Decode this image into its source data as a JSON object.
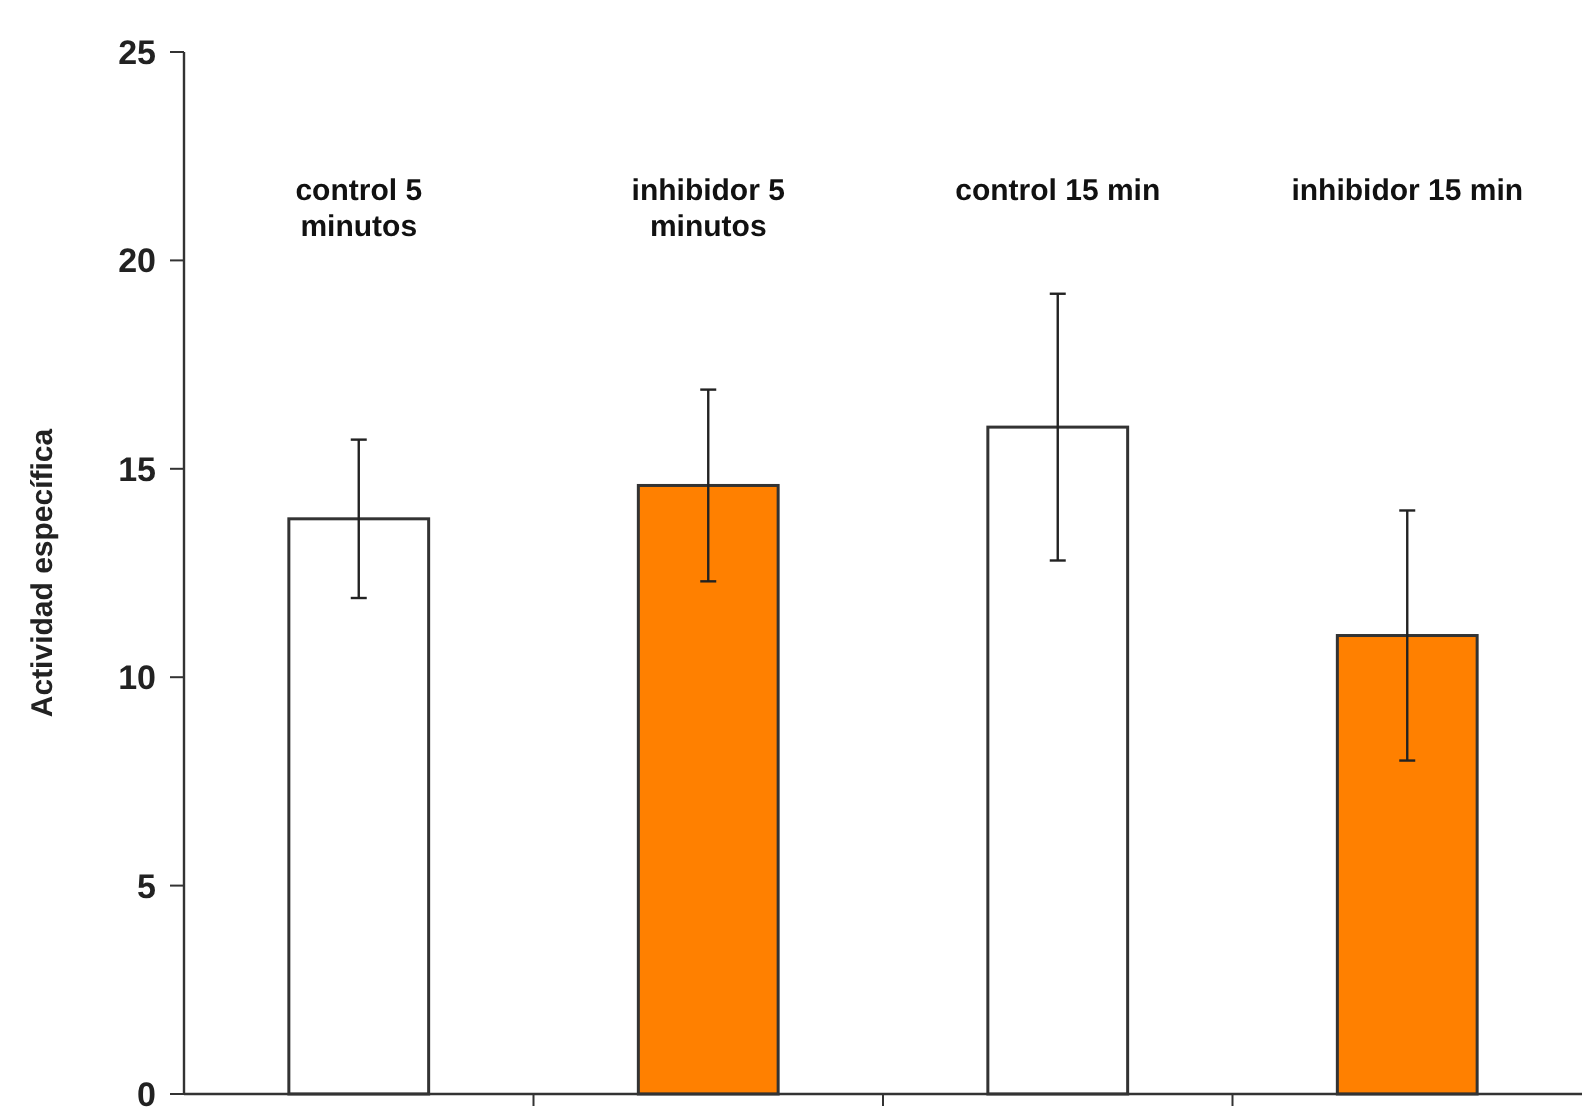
{
  "chart_data": {
    "type": "bar",
    "ylabel": "Actividad específica",
    "categories": [
      "control 5 minutos",
      "inhibidor 5 minutos",
      "control 15 min",
      "inhibidor 15 min"
    ],
    "values": [
      13.8,
      14.6,
      16.0,
      11.0
    ],
    "errors": [
      1.9,
      2.3,
      3.2,
      3.0
    ],
    "colors": [
      "#ffffff",
      "#ff8000",
      "#ffffff",
      "#ff8000"
    ],
    "ylim": [
      0,
      25
    ],
    "yticks": [
      0,
      5,
      10,
      15,
      20,
      25
    ],
    "grid": false
  }
}
